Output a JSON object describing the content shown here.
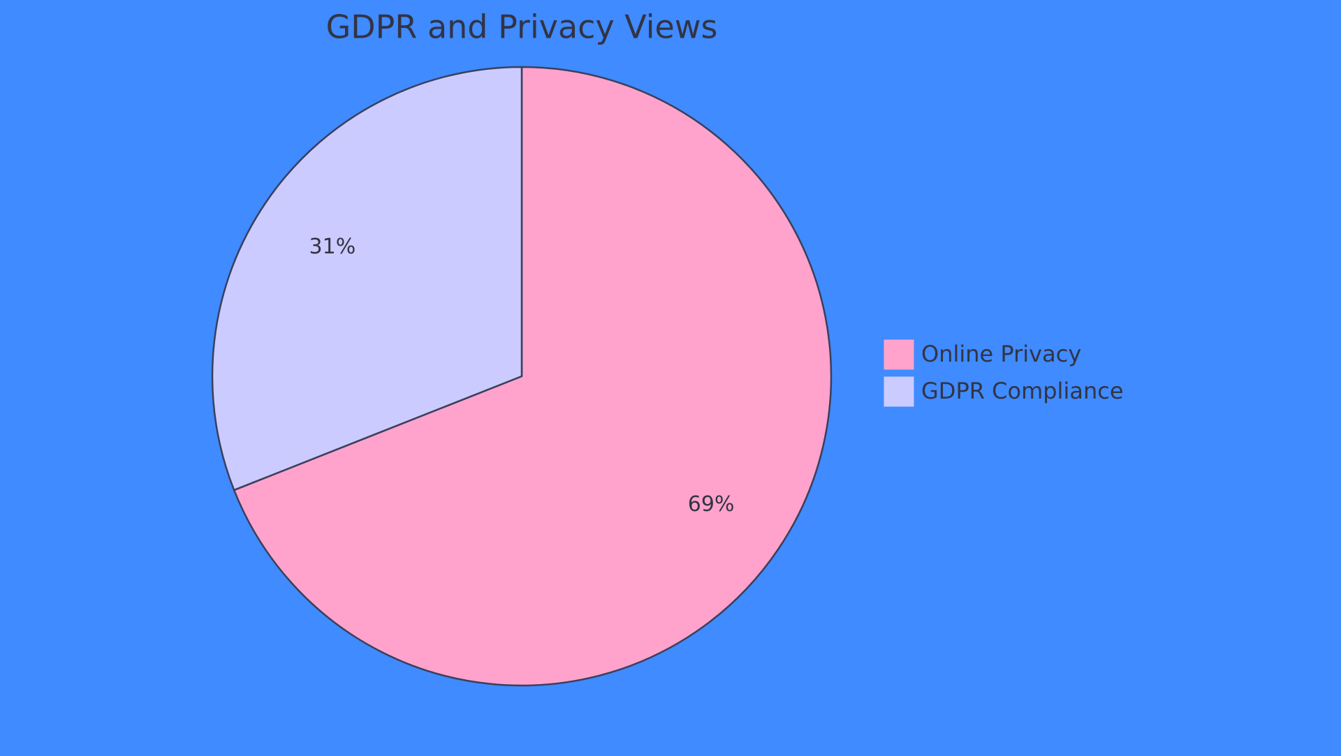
{
  "chart_data": {
    "type": "pie",
    "title": "GDPR and Privacy Views",
    "categories": [
      "Online Privacy",
      "GDPR Compliance"
    ],
    "values": [
      69,
      31
    ],
    "value_labels": [
      "69%",
      "31%"
    ],
    "colors": [
      "#ffa3cc",
      "#cbcbff"
    ],
    "legend": "right"
  }
}
